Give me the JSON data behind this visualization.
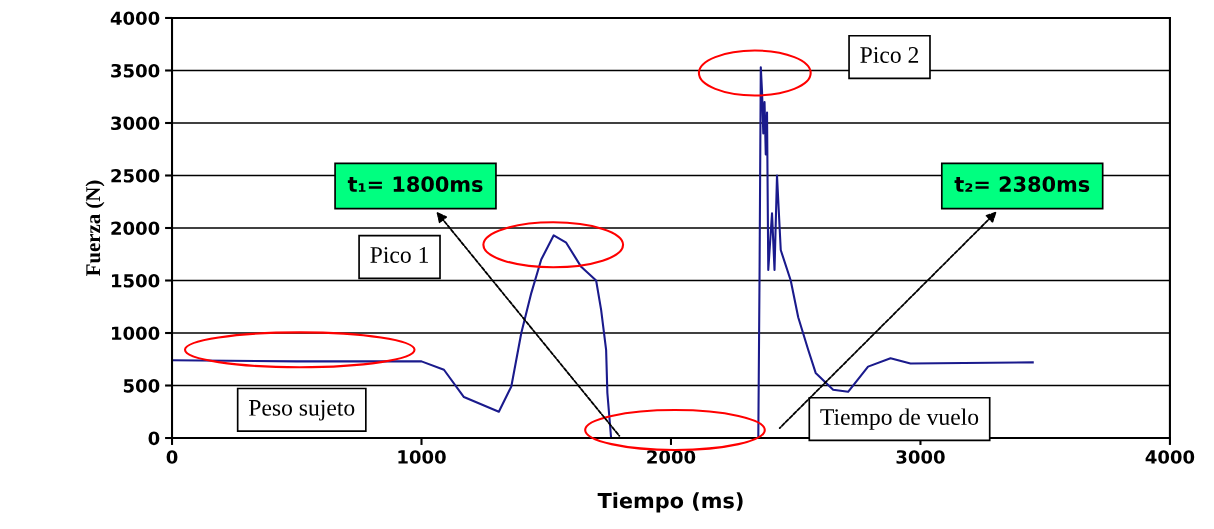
{
  "chart_data": {
    "type": "line",
    "xlabel": "Tiempo (ms)",
    "ylabel": "Fuerza (N)",
    "xlim": [
      0,
      4000
    ],
    "xticks": [
      0,
      1000,
      2000,
      3000,
      4000
    ],
    "ylim": [
      0,
      4000
    ],
    "yticks": [
      0,
      500,
      1000,
      1500,
      2000,
      2500,
      3000,
      3500,
      4000
    ],
    "grid": "y",
    "series": [
      {
        "color": "#1a1a8c",
        "x": [
          0,
          500,
          1000,
          1090,
          1170,
          1310,
          1360,
          1400,
          1440,
          1480,
          1530,
          1580,
          1640,
          1700,
          1720,
          1740,
          1745,
          1760,
          2000,
          2350,
          2355,
          2360,
          2365,
          2370,
          2375,
          2380,
          2385,
          2390,
          2405,
          2415,
          2425,
          2440,
          2480,
          2510,
          2550,
          2580,
          2650,
          2710,
          2790,
          2880,
          2960,
          3450
        ],
        "values": [
          740,
          730,
          730,
          650,
          390,
          250,
          490,
          1000,
          1380,
          1700,
          1930,
          1860,
          1630,
          1500,
          1220,
          840,
          430,
          0,
          0,
          0,
          1550,
          3530,
          3300,
          2900,
          3200,
          2700,
          3100,
          1600,
          2140,
          1600,
          2500,
          1790,
          1500,
          1150,
          840,
          620,
          460,
          440,
          680,
          760,
          710,
          720
        ]
      }
    ],
    "annotations": [
      "Peso sujeto",
      "Pico 1",
      "Pico 2",
      "Tiempo de vuelo",
      {
        "text": "t₁= 1800ms",
        "x": 1800,
        "y": 0
      },
      "t₂= 2380ms"
    ]
  }
}
